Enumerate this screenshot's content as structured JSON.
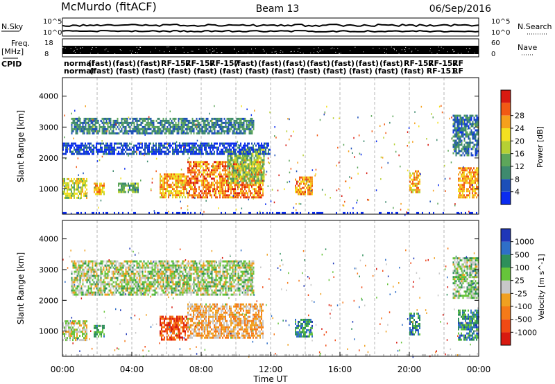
{
  "header": {
    "station": "McMurdo (fitACF)",
    "beam": "Beam 13",
    "date": "06/Sep/2016"
  },
  "rows": {
    "nsky_label": "N.Sky",
    "nsearch_label": "N.Search",
    "freq_label": "Freq.",
    "freq_unit": "[MHz]",
    "nave_label": "Nave",
    "cpid_label": "CPID",
    "left_ticks": [
      "10^5",
      "10^0",
      "18",
      "8"
    ],
    "right_ticks": [
      "10^5",
      "10^0",
      "60",
      "0"
    ]
  },
  "cpid_labels": {
    "row1": [
      "normal",
      "(fast)",
      "(fast)",
      "(fast)",
      "RF-157",
      "RF-157",
      "RF-157",
      "(fast)",
      "(fast)",
      "(fast)",
      "(fast)",
      "(fast)",
      "(fast)",
      "(fast)",
      "RF-157",
      "RF-157",
      "RF"
    ],
    "row2": [
      "normal",
      "(fast)",
      "(fast)",
      "(fast)",
      "(fast)",
      "(fast)",
      "(fast)",
      "(fast)",
      "(fast)",
      "(fast)",
      "(fast)",
      "(fast)",
      "(fast)",
      "(fast)",
      "RF-151",
      "RF"
    ]
  },
  "chart_data": [
    {
      "type": "heatmap",
      "xlabel": "Time UT",
      "ylabel": "Slant Range [km]",
      "x_ticks": [
        "00:00",
        "04:00",
        "08:00",
        "12:00",
        "16:00",
        "20:00",
        "00:00"
      ],
      "x_range_hours": [
        0,
        24
      ],
      "y_range_km": [
        180,
        4600
      ],
      "y_ticks": [
        1000,
        2000,
        3000,
        4000
      ],
      "colorbar": {
        "label": "Power [dB]",
        "ticks": [
          "4",
          "8",
          "12",
          "16",
          "20",
          "24",
          "28"
        ],
        "colors": [
          "#0a2cf0",
          "#1c4fb8",
          "#3e8a6e",
          "#5da65a",
          "#b6d034",
          "#f3e020",
          "#f6a01c",
          "#f25a14",
          "#d81a10"
        ]
      },
      "echo_regions": [
        {
          "t": [
            0.0,
            1.4
          ],
          "r": [
            700,
            1350
          ],
          "level": 0.55
        },
        {
          "t": [
            1.8,
            2.4
          ],
          "r": [
            800,
            1200
          ],
          "level": 0.7
        },
        {
          "t": [
            3.2,
            4.4
          ],
          "r": [
            900,
            1200
          ],
          "level": 0.35
        },
        {
          "t": [
            5.6,
            7.2
          ],
          "r": [
            750,
            1500
          ],
          "level": 0.72
        },
        {
          "t": [
            7.2,
            11.6
          ],
          "r": [
            750,
            1900
          ],
          "level": 0.8
        },
        {
          "t": [
            9.5,
            11.6
          ],
          "r": [
            1200,
            2300
          ],
          "level": 0.45
        },
        {
          "t": [
            13.4,
            14.4
          ],
          "r": [
            800,
            1400
          ],
          "level": 0.78
        },
        {
          "t": [
            20.0,
            20.6
          ],
          "r": [
            900,
            1600
          ],
          "level": 0.7
        },
        {
          "t": [
            22.8,
            24.0
          ],
          "r": [
            700,
            1700
          ],
          "level": 0.75
        },
        {
          "t": [
            0.0,
            12.0
          ],
          "r": [
            2150,
            2500
          ],
          "level": 0.08
        },
        {
          "t": [
            0.5,
            11.0
          ],
          "r": [
            2800,
            3300
          ],
          "level": 0.25
        },
        {
          "t": [
            22.5,
            24.0
          ],
          "r": [
            2100,
            3400
          ],
          "level": 0.2
        }
      ]
    },
    {
      "type": "heatmap",
      "xlabel": "Time UT",
      "ylabel": "Slant Range [km]",
      "x_ticks": [
        "00:00",
        "04:00",
        "08:00",
        "12:00",
        "16:00",
        "20:00",
        "00:00"
      ],
      "x_range_hours": [
        0,
        24
      ],
      "y_range_km": [
        180,
        4600
      ],
      "y_ticks": [
        1000,
        2000,
        3000,
        4000
      ],
      "colorbar": {
        "label": "Velocity [m s^-1]",
        "ticks": [
          "1000",
          "500",
          "100",
          "25",
          "-25",
          "-100",
          "-500",
          "-1000"
        ],
        "colors": [
          "#1f37b8",
          "#2f6fc8",
          "#2e8f5a",
          "#66c43a",
          "#c8c8c8",
          "#f0a020",
          "#f57a18",
          "#f04a14",
          "#d81a10"
        ]
      },
      "echo_regions": [
        {
          "t": [
            0.0,
            1.4
          ],
          "r": [
            700,
            1350
          ],
          "level": 0.5
        },
        {
          "t": [
            1.8,
            2.4
          ],
          "r": [
            800,
            1200
          ],
          "level": 0.3
        },
        {
          "t": [
            5.6,
            7.2
          ],
          "r": [
            750,
            1500
          ],
          "level": 0.85
        },
        {
          "t": [
            7.2,
            11.6
          ],
          "r": [
            750,
            1900
          ],
          "level": 0.62
        },
        {
          "t": [
            13.4,
            14.4
          ],
          "r": [
            800,
            1400
          ],
          "level": 0.22
        },
        {
          "t": [
            20.0,
            20.6
          ],
          "r": [
            900,
            1600
          ],
          "level": 0.2
        },
        {
          "t": [
            22.8,
            24.0
          ],
          "r": [
            700,
            1700
          ],
          "level": 0.22
        },
        {
          "t": [
            0.5,
            11.0
          ],
          "r": [
            2200,
            3300
          ],
          "level": 0.45
        },
        {
          "t": [
            22.5,
            24.0
          ],
          "r": [
            2100,
            3400
          ],
          "level": 0.4
        }
      ]
    }
  ]
}
